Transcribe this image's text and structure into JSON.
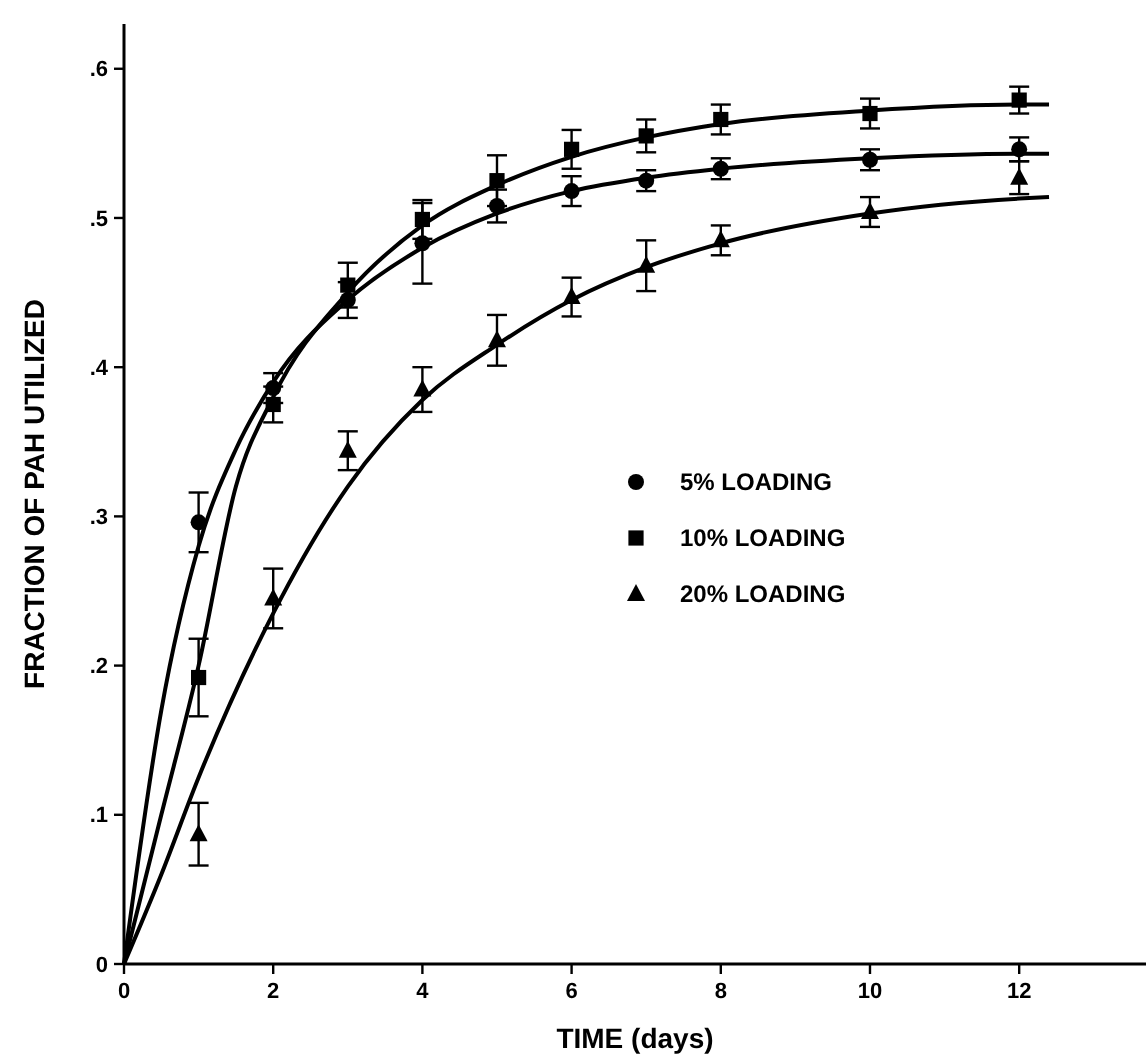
{
  "chart_data": {
    "type": "scatter",
    "xlabel": "TIME (days)",
    "ylabel": "FRACTION OF PAH UTILIZED",
    "x": [
      1,
      2,
      3,
      4,
      5,
      6,
      7,
      8,
      10,
      12
    ],
    "xlim": [
      0,
      13.7
    ],
    "xticks": [
      0,
      2,
      4,
      6,
      8,
      10,
      12
    ],
    "ylim": [
      0,
      0.63
    ],
    "yticks": [
      0,
      {
        "value": 0.1,
        "label": ".1"
      },
      {
        "value": 0.2,
        "label": ".2"
      },
      {
        "value": 0.3,
        "label": ".3"
      },
      {
        "value": 0.4,
        "label": ".4"
      },
      {
        "value": 0.5,
        "label": ".5"
      },
      {
        "value": 0.6,
        "label": ".6"
      }
    ],
    "legend": "right",
    "grid": false,
    "series": [
      {
        "name": "5% LOADING",
        "color": "#000000",
        "marker": "circle",
        "values": [
          0.296,
          0.386,
          0.445,
          0.483,
          0.508,
          0.518,
          0.525,
          0.533,
          0.539,
          0.546
        ],
        "errors": [
          0.02,
          0.01,
          0.012,
          0.027,
          0.011,
          0.01,
          0.007,
          0.007,
          0.007,
          0.008
        ]
      },
      {
        "name": "10% LOADING",
        "color": "#000000",
        "marker": "square",
        "values": [
          0.192,
          0.375,
          0.455,
          0.499,
          0.525,
          0.546,
          0.555,
          0.566,
          0.57,
          0.579
        ],
        "errors": [
          0.026,
          0.012,
          0.015,
          0.013,
          0.017,
          0.013,
          0.011,
          0.01,
          0.01,
          0.009
        ]
      },
      {
        "name": "20% LOADING",
        "color": "#000000",
        "marker": "triangle",
        "values": [
          0.087,
          0.245,
          0.344,
          0.385,
          0.418,
          0.447,
          0.468,
          0.485,
          0.504,
          0.527
        ],
        "errors": [
          0.021,
          0.02,
          0.013,
          0.015,
          0.017,
          0.013,
          0.017,
          0.01,
          0.01,
          0.011
        ]
      },
      {
        "type": "line",
        "color": "#000000",
        "marker": "none",
        "x": [
          0,
          0.5,
          1,
          1.5,
          2,
          3,
          4,
          5,
          6,
          7,
          8,
          10,
          12,
          12.4
        ],
        "values": [
          0,
          0.17,
          0.28,
          0.345,
          0.39,
          0.445,
          0.48,
          0.503,
          0.518,
          0.527,
          0.533,
          0.54,
          0.543,
          0.543
        ]
      },
      {
        "type": "line",
        "color": "#000000",
        "marker": "none",
        "x": [
          0,
          0.5,
          1,
          1.5,
          2,
          3,
          4,
          5,
          6,
          7,
          8,
          10,
          12,
          12.4
        ],
        "values": [
          0,
          0.1,
          0.2,
          0.32,
          0.38,
          0.45,
          0.495,
          0.522,
          0.541,
          0.554,
          0.563,
          0.572,
          0.576,
          0.576
        ]
      },
      {
        "type": "line",
        "color": "#000000",
        "marker": "none",
        "x": [
          0,
          0.5,
          1,
          2,
          3,
          4,
          5,
          6,
          7,
          8,
          10,
          12,
          12.4
        ],
        "values": [
          0,
          0.06,
          0.125,
          0.235,
          0.32,
          0.378,
          0.415,
          0.445,
          0.467,
          0.483,
          0.503,
          0.513,
          0.514
        ]
      }
    ]
  }
}
